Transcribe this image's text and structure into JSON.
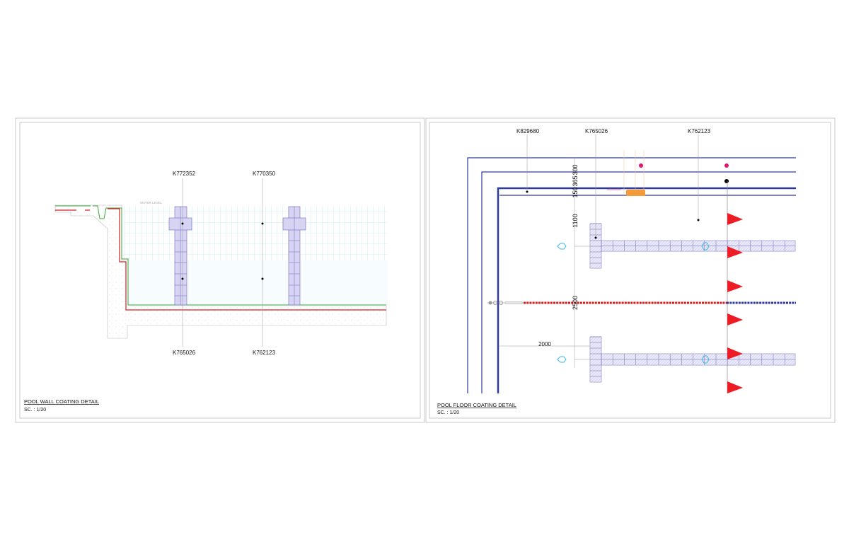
{
  "left_panel": {
    "title": "POOL WALL COATING DETAIL",
    "scale": "SC. : 1/20",
    "water_level": "WATER LEVEL",
    "callouts_top": [
      "K772352",
      "K770350"
    ],
    "callouts_bottom": [
      "K765026",
      "K762123"
    ]
  },
  "right_panel": {
    "title": "POOL FLOOR COATING DETAIL",
    "scale": "SC. : 1/20",
    "callouts_top": [
      "K829680",
      "K765026",
      "K762123"
    ],
    "dimensions": {
      "d300": "300",
      "d365": "365",
      "d150": "150",
      "d1100": "1100",
      "d2500": "2500",
      "d2000": "2000"
    }
  },
  "colors": {
    "frame": "#c8c8c8",
    "grid": "#9fe3ee",
    "tile": "#d6d4f2",
    "tile_line": "#6f6bbd",
    "pool_line": "#2e3a9c",
    "membrane_green": "#3aa63a",
    "membrane_red": "#d42020",
    "flag": "#ee1c24",
    "marker": "#e0156f"
  }
}
